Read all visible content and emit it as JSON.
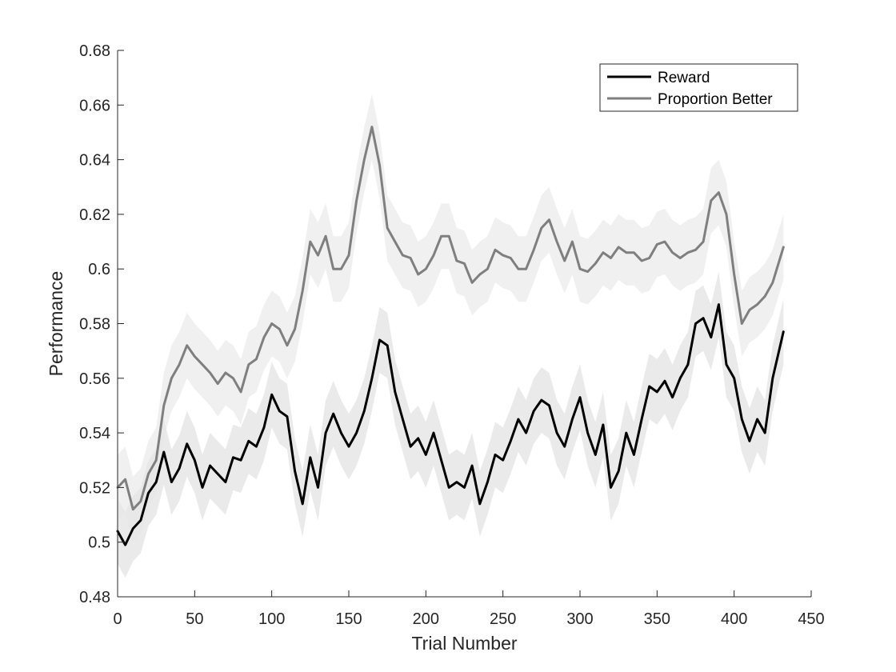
{
  "colors": {
    "reward": "#000000",
    "proportion_better": "#7f7f7f",
    "band": "#e6e6e6",
    "axis": "#262626"
  },
  "chart_data": {
    "type": "line",
    "title": "",
    "xlabel": "Trial Number",
    "ylabel": "Performance",
    "xlim": [
      0,
      450
    ],
    "ylim": [
      0.48,
      0.68
    ],
    "xticks": [
      0,
      50,
      100,
      150,
      200,
      250,
      300,
      350,
      400,
      450
    ],
    "xtick_labels": [
      "0",
      "50",
      "100",
      "150",
      "200",
      "250",
      "300",
      "350",
      "400",
      "450"
    ],
    "yticks": [
      0.48,
      0.5,
      0.52,
      0.54,
      0.56,
      0.58,
      0.6,
      0.62,
      0.64,
      0.66,
      0.68
    ],
    "ytick_labels": [
      "0.48",
      "0.5",
      "0.52",
      "0.54",
      "0.56",
      "0.58",
      "0.6",
      "0.62",
      "0.64",
      "0.66",
      "0.68"
    ],
    "grid": false,
    "legend_position": "top-right",
    "band_halfwidth": 0.012,
    "series": [
      {
        "name": "Reward",
        "color": "#000000",
        "x": [
          0,
          5,
          10,
          15,
          20,
          25,
          30,
          35,
          40,
          45,
          50,
          55,
          60,
          65,
          70,
          75,
          80,
          85,
          90,
          95,
          100,
          105,
          110,
          115,
          120,
          125,
          130,
          135,
          140,
          145,
          150,
          155,
          160,
          165,
          170,
          175,
          180,
          185,
          190,
          195,
          200,
          205,
          210,
          215,
          220,
          225,
          230,
          235,
          240,
          245,
          250,
          255,
          260,
          265,
          270,
          275,
          280,
          285,
          290,
          295,
          300,
          305,
          310,
          315,
          320,
          325,
          330,
          335,
          340,
          345,
          350,
          355,
          360,
          365,
          370,
          375,
          380,
          385,
          390,
          395,
          400,
          405,
          410,
          415,
          420,
          425,
          432
        ],
        "y": [
          0.504,
          0.499,
          0.505,
          0.508,
          0.518,
          0.522,
          0.533,
          0.522,
          0.527,
          0.536,
          0.53,
          0.52,
          0.528,
          0.525,
          0.522,
          0.531,
          0.53,
          0.537,
          0.535,
          0.542,
          0.554,
          0.548,
          0.546,
          0.526,
          0.514,
          0.531,
          0.52,
          0.54,
          0.547,
          0.54,
          0.535,
          0.54,
          0.548,
          0.56,
          0.574,
          0.572,
          0.555,
          0.545,
          0.535,
          0.538,
          0.532,
          0.54,
          0.53,
          0.52,
          0.522,
          0.52,
          0.528,
          0.514,
          0.522,
          0.532,
          0.53,
          0.537,
          0.545,
          0.54,
          0.548,
          0.552,
          0.55,
          0.54,
          0.535,
          0.545,
          0.553,
          0.54,
          0.532,
          0.543,
          0.52,
          0.526,
          0.54,
          0.532,
          0.545,
          0.557,
          0.555,
          0.559,
          0.553,
          0.56,
          0.565,
          0.58,
          0.582,
          0.575,
          0.587,
          0.565,
          0.56,
          0.545,
          0.537,
          0.545,
          0.54,
          0.56,
          0.577
        ]
      },
      {
        "name": "Proportion Better",
        "color": "#7f7f7f",
        "x": [
          0,
          5,
          10,
          15,
          20,
          25,
          30,
          35,
          40,
          45,
          50,
          55,
          60,
          65,
          70,
          75,
          80,
          85,
          90,
          95,
          100,
          105,
          110,
          115,
          120,
          125,
          130,
          135,
          140,
          145,
          150,
          155,
          160,
          165,
          170,
          175,
          180,
          185,
          190,
          195,
          200,
          205,
          210,
          215,
          220,
          225,
          230,
          235,
          240,
          245,
          250,
          255,
          260,
          265,
          270,
          275,
          280,
          285,
          290,
          295,
          300,
          305,
          310,
          315,
          320,
          325,
          330,
          335,
          340,
          345,
          350,
          355,
          360,
          365,
          370,
          375,
          380,
          385,
          390,
          395,
          400,
          405,
          410,
          415,
          420,
          425,
          432
        ],
        "y": [
          0.52,
          0.523,
          0.512,
          0.515,
          0.525,
          0.53,
          0.55,
          0.56,
          0.565,
          0.572,
          0.568,
          0.565,
          0.562,
          0.558,
          0.562,
          0.56,
          0.555,
          0.565,
          0.567,
          0.575,
          0.58,
          0.578,
          0.572,
          0.578,
          0.592,
          0.61,
          0.605,
          0.612,
          0.6,
          0.6,
          0.605,
          0.625,
          0.64,
          0.652,
          0.638,
          0.615,
          0.61,
          0.605,
          0.604,
          0.598,
          0.6,
          0.605,
          0.612,
          0.612,
          0.603,
          0.602,
          0.595,
          0.598,
          0.6,
          0.607,
          0.605,
          0.604,
          0.6,
          0.6,
          0.607,
          0.615,
          0.618,
          0.61,
          0.603,
          0.61,
          0.6,
          0.599,
          0.602,
          0.606,
          0.604,
          0.608,
          0.606,
          0.606,
          0.603,
          0.604,
          0.609,
          0.61,
          0.606,
          0.604,
          0.606,
          0.607,
          0.61,
          0.625,
          0.628,
          0.62,
          0.598,
          0.58,
          0.585,
          0.587,
          0.59,
          0.595,
          0.608
        ]
      }
    ]
  }
}
